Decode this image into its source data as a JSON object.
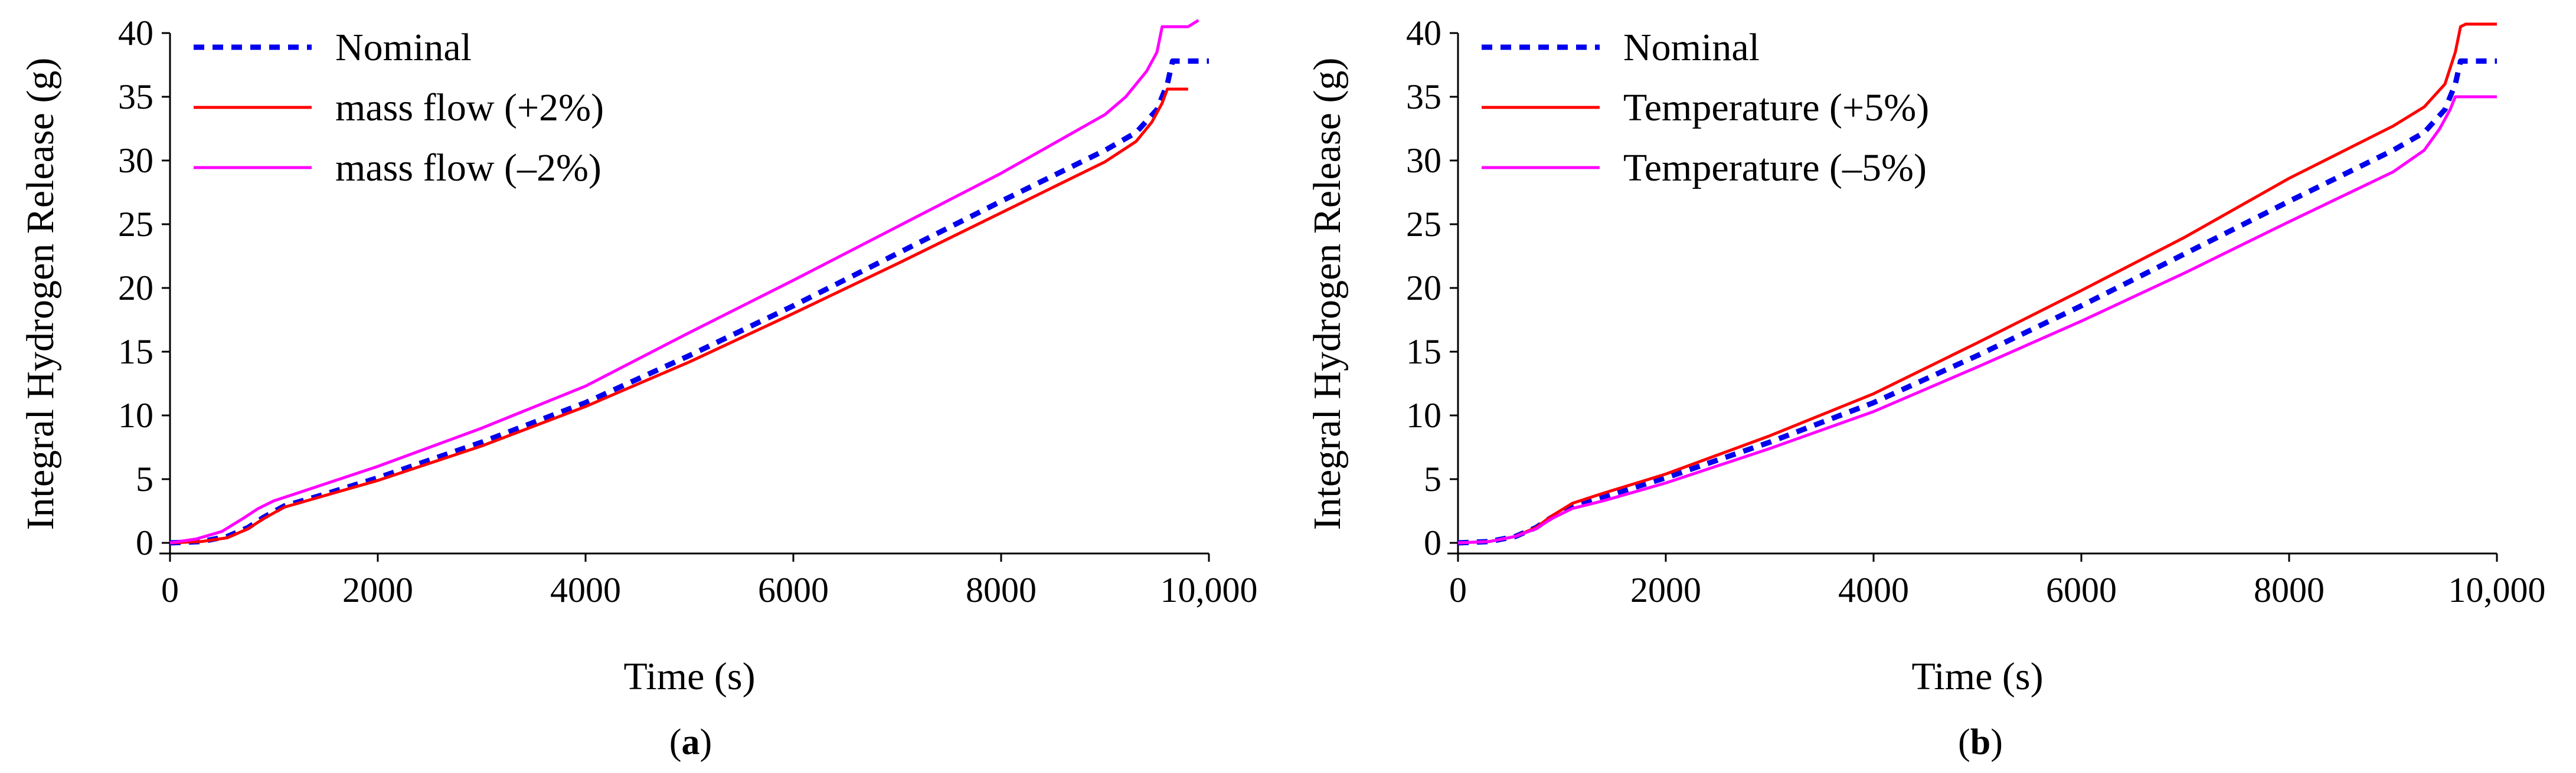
{
  "chart_data": [
    {
      "panel_label": "a",
      "type": "line",
      "xlabel": "Time (s)",
      "ylabel": "Integral Hydrogen Release (g)",
      "xlim": [
        0,
        10000
      ],
      "ylim": [
        0,
        40
      ],
      "xticks": [
        0,
        2000,
        4000,
        6000,
        8000,
        10000
      ],
      "xtick_labels": [
        "0",
        "2000",
        "4000",
        "6000",
        "8000",
        "10,000"
      ],
      "yticks": [
        0,
        5,
        10,
        15,
        20,
        25,
        30,
        35,
        40
      ],
      "ytick_labels": [
        "0",
        "5",
        "10",
        "15",
        "20",
        "25",
        "30",
        "35",
        "40"
      ],
      "legend_position": "top-left",
      "series": [
        {
          "name": "Nominal",
          "color": "#0000ee",
          "style": "dotted",
          "x": [
            0,
            300,
            550,
            750,
            900,
            1100,
            1400,
            2000,
            3000,
            4000,
            5000,
            6000,
            7000,
            8000,
            9000,
            9300,
            9500,
            9600,
            9650,
            9800,
            10000
          ],
          "y": [
            0,
            0.1,
            0.5,
            1.2,
            2.0,
            2.9,
            3.6,
            5.1,
            7.9,
            11.0,
            14.7,
            18.6,
            22.7,
            26.8,
            30.8,
            32.2,
            34.0,
            36.0,
            37.8,
            37.8,
            37.8
          ]
        },
        {
          "name": "mass flow (+2%)",
          "color": "#ff0000",
          "style": "solid",
          "x": [
            0,
            300,
            550,
            750,
            900,
            1100,
            1400,
            2000,
            3000,
            4000,
            5000,
            6000,
            7000,
            8000,
            9000,
            9300,
            9450,
            9550,
            9600,
            9800
          ],
          "y": [
            0,
            0.1,
            0.4,
            1.1,
            1.9,
            2.8,
            3.5,
            4.9,
            7.6,
            10.7,
            14.2,
            18.0,
            21.9,
            25.9,
            29.9,
            31.5,
            33.0,
            34.5,
            35.6,
            35.6
          ]
        },
        {
          "name": "mass flow (–2%)",
          "color": "#ff00ff",
          "style": "solid",
          "x": [
            0,
            250,
            500,
            700,
            850,
            1000,
            1300,
            2000,
            3000,
            4000,
            5000,
            6000,
            7000,
            8000,
            9000,
            9200,
            9400,
            9500,
            9550,
            9800,
            9900
          ],
          "y": [
            0,
            0.3,
            0.9,
            1.9,
            2.7,
            3.3,
            4.1,
            6.0,
            9.0,
            12.3,
            16.5,
            20.6,
            24.8,
            29.0,
            33.6,
            35.0,
            37.0,
            38.5,
            40.5,
            40.5,
            41.0
          ]
        }
      ]
    },
    {
      "panel_label": "b",
      "type": "line",
      "xlabel": "Time (s)",
      "ylabel": "Integral Hydrogen Release (g)",
      "xlim": [
        0,
        10000
      ],
      "ylim": [
        0,
        40
      ],
      "xticks": [
        0,
        2000,
        4000,
        6000,
        8000,
        10000
      ],
      "xtick_labels": [
        "0",
        "2000",
        "4000",
        "6000",
        "8000",
        "10,000"
      ],
      "yticks": [
        0,
        5,
        10,
        15,
        20,
        25,
        30,
        35,
        40
      ],
      "ytick_labels": [
        "0",
        "5",
        "10",
        "15",
        "20",
        "25",
        "30",
        "35",
        "40"
      ],
      "legend_position": "top-left",
      "series": [
        {
          "name": "Nominal",
          "color": "#0000ee",
          "style": "dotted",
          "x": [
            0,
            300,
            550,
            750,
            900,
            1100,
            1400,
            2000,
            3000,
            4000,
            5000,
            6000,
            7000,
            8000,
            9000,
            9300,
            9500,
            9600,
            9650,
            9800,
            10000
          ],
          "y": [
            0,
            0.1,
            0.5,
            1.2,
            2.0,
            2.9,
            3.6,
            5.1,
            7.9,
            11.0,
            14.7,
            18.6,
            22.7,
            26.8,
            30.8,
            32.2,
            34.0,
            36.0,
            37.8,
            37.8,
            37.8
          ]
        },
        {
          "name": "Temperature (+5%)",
          "color": "#ff0000",
          "style": "solid",
          "x": [
            0,
            300,
            550,
            750,
            900,
            1100,
            1400,
            2000,
            3000,
            4000,
            5000,
            6000,
            7000,
            8000,
            9000,
            9300,
            9500,
            9600,
            9650,
            9700,
            10000
          ],
          "y": [
            0,
            0.1,
            0.5,
            1.2,
            2.1,
            3.1,
            3.9,
            5.4,
            8.4,
            11.7,
            15.7,
            19.8,
            24.0,
            28.6,
            32.7,
            34.2,
            36.0,
            38.5,
            40.5,
            40.7,
            40.7
          ]
        },
        {
          "name": "Temperature (–5%)",
          "color": "#ff00ff",
          "style": "solid",
          "x": [
            0,
            300,
            550,
            750,
            900,
            1100,
            1400,
            2000,
            3000,
            4000,
            5000,
            6000,
            7000,
            8000,
            9000,
            9300,
            9450,
            9550,
            9600,
            9800,
            10000
          ],
          "y": [
            0,
            0.1,
            0.5,
            1.1,
            1.9,
            2.7,
            3.3,
            4.7,
            7.4,
            10.3,
            13.8,
            17.4,
            21.2,
            25.2,
            29.1,
            30.8,
            32.5,
            34.0,
            35.0,
            35.0,
            35.0
          ]
        }
      ]
    }
  ]
}
